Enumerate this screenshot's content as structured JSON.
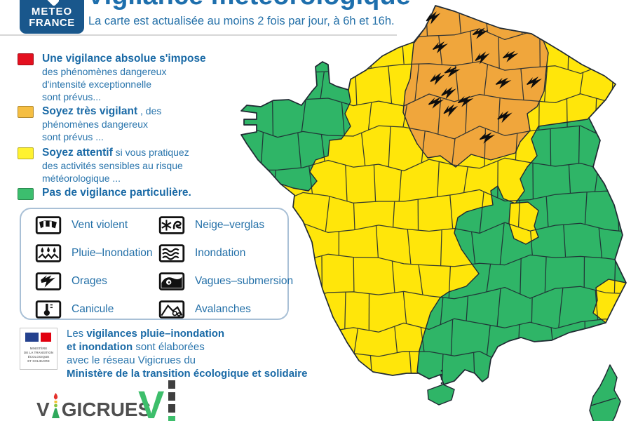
{
  "header": {
    "logo": {
      "line1": "METEO",
      "line2": "FRANCE"
    },
    "title": "Vigilance météorologique",
    "subtitle": "La carte est actualisée au moins 2 fois par jour, à 6h et 16h."
  },
  "legend": {
    "levels": [
      {
        "id": "rouge",
        "color": "#E4101F",
        "title": "Une vigilance absolue s'impose",
        "title_suffix": "",
        "description": "des phénomènes dangereux\nd'intensité exceptionnelle\nsont prévus..."
      },
      {
        "id": "orange",
        "color": "#F5BE42",
        "title": "Soyez très vigilant",
        "title_suffix": " , des",
        "description": "phénomènes dangereux\nsont prévus ..."
      },
      {
        "id": "jaune",
        "color": "#FFF230",
        "title": "Soyez attentif",
        "title_suffix": " si vous pratiquez",
        "description": "des activités sensibles au risque\nmétéorologique ..."
      },
      {
        "id": "vert",
        "color": "#3CBE6E",
        "title": "Pas de vigilance particulière.",
        "title_suffix": "",
        "description": ""
      }
    ]
  },
  "phenomena": {
    "items": [
      {
        "label": "Vent violent",
        "icon": "vent-violent-icon"
      },
      {
        "label": "Neige–verglas",
        "icon": "neige-verglas-icon"
      },
      {
        "label": "Pluie–Inondation",
        "icon": "pluie-inondation-icon"
      },
      {
        "label": "Inondation",
        "icon": "inondation-icon"
      },
      {
        "label": "Orages",
        "icon": "orages-icon"
      },
      {
        "label": "Vagues–submersion",
        "icon": "vagues-submersion-icon"
      },
      {
        "label": "Canicule",
        "icon": "canicule-icon"
      },
      {
        "label": "Avalanches",
        "icon": "avalanches-icon"
      }
    ]
  },
  "vigicrues_note": {
    "l1_pre": "Les ",
    "l1_bold": "vigilances pluie–inondation",
    "l2_bold": "et inondation",
    "l2_post": " sont élaborées",
    "l3": "avec le réseau Vigicrues du",
    "l4_bold": "Ministère de la transition écologique et solidaire"
  },
  "ministry_logo": {
    "text": "MINISTÈRE\nDE LA TRANSITION\nÉCOLOGIQUE\nET SOLIDAIRE"
  },
  "vigicrues_logo": {
    "prefix": "V",
    "suffix": "GICRUES"
  },
  "map": {
    "colors": {
      "jaune": "#FFE60A",
      "orange": "#F0A63C",
      "vert": "#2FB567",
      "border": "#202A33"
    },
    "storm_icon": "orages",
    "storm_icon_count": 15,
    "regions": [
      {
        "area": "nord-est",
        "level": "orange",
        "phenomene": "orages"
      },
      {
        "area": "bretagne-cotentin",
        "level": "vert"
      },
      {
        "area": "sud-est-alpes-jura",
        "level": "vert"
      },
      {
        "area": "reste-du-territoire",
        "level": "jaune"
      },
      {
        "area": "enclave-rhone",
        "level": "jaune"
      },
      {
        "area": "alpes-maritimes",
        "level": "jaune"
      },
      {
        "area": "corse",
        "level": "vert"
      },
      {
        "area": "andorre",
        "level": "vert"
      }
    ]
  }
}
